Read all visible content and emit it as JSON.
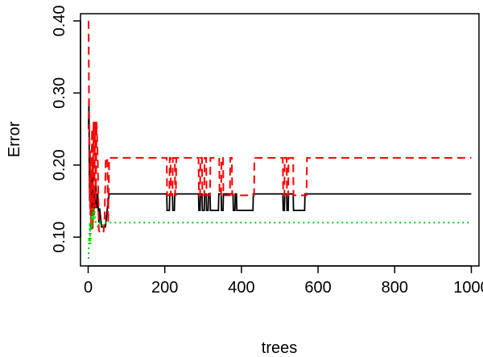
{
  "chart_data": {
    "type": "line",
    "xlabel": "trees",
    "ylabel": "Error",
    "xlim": [
      -20,
      1020
    ],
    "ylim": [
      0.06,
      0.41
    ],
    "x_ticks": [
      0,
      200,
      400,
      600,
      800,
      1000
    ],
    "x_tick_labels": [
      "0",
      "200",
      "400",
      "600",
      "800",
      "1000"
    ],
    "y_ticks": [
      0.1,
      0.2,
      0.3,
      0.4
    ],
    "y_tick_labels": [
      "0.10",
      "0.20",
      "0.30",
      "0.40"
    ],
    "grid": false,
    "series": [
      {
        "color": "#000000",
        "dash": "solid",
        "points": [
          [
            1,
            0.25
          ],
          [
            2,
            0.29
          ],
          [
            3,
            0.2
          ],
          [
            4,
            0.15
          ],
          [
            5,
            0.22
          ],
          [
            6,
            0.13
          ],
          [
            8,
            0.18
          ],
          [
            10,
            0.14
          ],
          [
            12,
            0.2
          ],
          [
            14,
            0.13
          ],
          [
            16,
            0.16
          ],
          [
            18,
            0.14
          ],
          [
            20,
            0.18
          ],
          [
            22,
            0.14
          ],
          [
            25,
            0.16
          ],
          [
            28,
            0.12
          ],
          [
            30,
            0.14
          ],
          [
            35,
            0.114
          ],
          [
            45,
            0.114
          ],
          [
            50,
            0.14
          ],
          [
            55,
            0.16
          ],
          [
            205,
            0.16
          ],
          [
            206,
            0.137
          ],
          [
            212,
            0.137
          ],
          [
            213,
            0.16
          ],
          [
            220,
            0.16
          ],
          [
            221,
            0.137
          ],
          [
            225,
            0.137
          ],
          [
            226,
            0.16
          ],
          [
            288,
            0.16
          ],
          [
            289,
            0.137
          ],
          [
            292,
            0.137
          ],
          [
            293,
            0.16
          ],
          [
            297,
            0.16
          ],
          [
            298,
            0.137
          ],
          [
            303,
            0.137
          ],
          [
            304,
            0.16
          ],
          [
            308,
            0.16
          ],
          [
            309,
            0.137
          ],
          [
            313,
            0.137
          ],
          [
            314,
            0.16
          ],
          [
            318,
            0.16
          ],
          [
            319,
            0.137
          ],
          [
            340,
            0.137
          ],
          [
            341,
            0.16
          ],
          [
            347,
            0.16
          ],
          [
            348,
            0.137
          ],
          [
            352,
            0.137
          ],
          [
            353,
            0.16
          ],
          [
            378,
            0.16
          ],
          [
            379,
            0.137
          ],
          [
            383,
            0.137
          ],
          [
            384,
            0.16
          ],
          [
            387,
            0.16
          ],
          [
            388,
            0.137
          ],
          [
            430,
            0.137
          ],
          [
            431,
            0.16
          ],
          [
            508,
            0.16
          ],
          [
            509,
            0.137
          ],
          [
            512,
            0.137
          ],
          [
            513,
            0.16
          ],
          [
            518,
            0.16
          ],
          [
            519,
            0.137
          ],
          [
            522,
            0.137
          ],
          [
            523,
            0.16
          ],
          [
            535,
            0.16
          ],
          [
            536,
            0.137
          ],
          [
            565,
            0.137
          ],
          [
            566,
            0.16
          ],
          [
            1000,
            0.16
          ]
        ]
      },
      {
        "color": "#ff0000",
        "dash": "dashed",
        "points": [
          [
            1,
            0.4
          ],
          [
            2,
            0.3
          ],
          [
            3,
            0.25
          ],
          [
            4,
            0.22
          ],
          [
            5,
            0.14
          ],
          [
            6,
            0.21
          ],
          [
            7,
            0.11
          ],
          [
            8,
            0.16
          ],
          [
            10,
            0.25
          ],
          [
            12,
            0.11
          ],
          [
            14,
            0.26
          ],
          [
            16,
            0.13
          ],
          [
            18,
            0.26
          ],
          [
            20,
            0.14
          ],
          [
            22,
            0.26
          ],
          [
            25,
            0.21
          ],
          [
            28,
            0.11
          ],
          [
            30,
            0.106
          ],
          [
            40,
            0.106
          ],
          [
            43,
            0.13
          ],
          [
            46,
            0.21
          ],
          [
            50,
            0.21
          ],
          [
            52,
            0.12
          ],
          [
            55,
            0.21
          ],
          [
            205,
            0.21
          ],
          [
            206,
            0.158
          ],
          [
            212,
            0.158
          ],
          [
            213,
            0.21
          ],
          [
            215,
            0.21
          ],
          [
            216,
            0.158
          ],
          [
            220,
            0.158
          ],
          [
            221,
            0.21
          ],
          [
            226,
            0.21
          ],
          [
            227,
            0.158
          ],
          [
            229,
            0.158
          ],
          [
            230,
            0.21
          ],
          [
            288,
            0.21
          ],
          [
            289,
            0.158
          ],
          [
            292,
            0.158
          ],
          [
            293,
            0.21
          ],
          [
            297,
            0.21
          ],
          [
            298,
            0.158
          ],
          [
            303,
            0.158
          ],
          [
            304,
            0.21
          ],
          [
            308,
            0.21
          ],
          [
            309,
            0.158
          ],
          [
            318,
            0.158
          ],
          [
            319,
            0.21
          ],
          [
            342,
            0.21
          ],
          [
            343,
            0.158
          ],
          [
            347,
            0.158
          ],
          [
            348,
            0.21
          ],
          [
            352,
            0.21
          ],
          [
            353,
            0.158
          ],
          [
            370,
            0.158
          ],
          [
            371,
            0.21
          ],
          [
            375,
            0.21
          ],
          [
            376,
            0.158
          ],
          [
            433,
            0.158
          ],
          [
            434,
            0.21
          ],
          [
            508,
            0.21
          ],
          [
            509,
            0.158
          ],
          [
            512,
            0.158
          ],
          [
            513,
            0.21
          ],
          [
            518,
            0.21
          ],
          [
            519,
            0.158
          ],
          [
            522,
            0.158
          ],
          [
            523,
            0.21
          ],
          [
            535,
            0.21
          ],
          [
            536,
            0.158
          ],
          [
            570,
            0.158
          ],
          [
            571,
            0.21
          ],
          [
            1000,
            0.21
          ]
        ]
      },
      {
        "color": "#00cc00",
        "dash": "dotted",
        "points": [
          [
            1,
            0.07
          ],
          [
            2,
            0.1
          ],
          [
            3,
            0.09
          ],
          [
            4,
            0.12
          ],
          [
            6,
            0.09
          ],
          [
            8,
            0.13
          ],
          [
            10,
            0.11
          ],
          [
            12,
            0.14
          ],
          [
            14,
            0.12
          ],
          [
            16,
            0.14
          ],
          [
            20,
            0.12
          ],
          [
            25,
            0.115
          ],
          [
            30,
            0.12
          ],
          [
            35,
            0.115
          ],
          [
            40,
            0.12
          ],
          [
            1000,
            0.12
          ]
        ]
      }
    ]
  }
}
